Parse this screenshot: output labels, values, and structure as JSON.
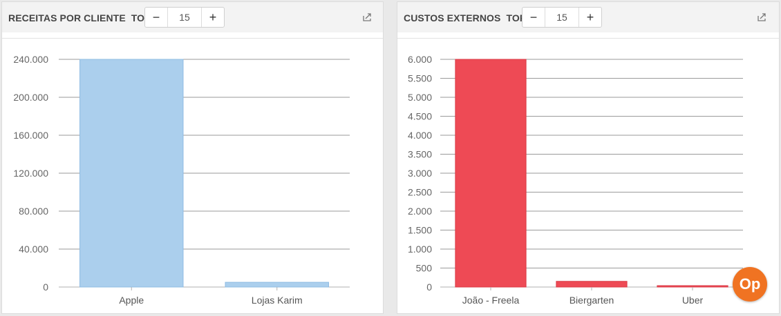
{
  "panels": [
    {
      "title": "RECEITAS POR CLIENTE",
      "top_label": "TOP",
      "top_value": "15",
      "minus": "−",
      "plus": "+"
    },
    {
      "title": "CUSTOS EXTERNOS",
      "top_label": "TOP",
      "top_value": "15",
      "minus": "−",
      "plus": "+"
    }
  ],
  "badge": {
    "label": "Op",
    "color": "#f07322"
  },
  "chart_data": [
    {
      "type": "bar",
      "title": "RECEITAS POR CLIENTE",
      "categories": [
        "Apple",
        "Lojas Karim"
      ],
      "values": [
        240000,
        5000
      ],
      "ylim": [
        0,
        240000
      ],
      "yticks": [
        0,
        40000,
        80000,
        120000,
        160000,
        200000,
        240000
      ],
      "ytick_labels": [
        "0",
        "40.000",
        "80.000",
        "120.000",
        "160.000",
        "200.000",
        "240.000"
      ],
      "grid": true,
      "bar_color": "#abcfed",
      "bar_stroke": "#8fbce3"
    },
    {
      "type": "bar",
      "title": "CUSTOS EXTERNOS",
      "categories": [
        "João - Freela",
        "Biergarten",
        "Uber"
      ],
      "values": [
        6000,
        150,
        30
      ],
      "ylim": [
        0,
        6000
      ],
      "yticks": [
        0,
        500,
        1000,
        1500,
        2000,
        2500,
        3000,
        3500,
        4000,
        4500,
        5000,
        5500,
        6000
      ],
      "ytick_labels": [
        "0",
        "500",
        "1.000",
        "1.500",
        "2.000",
        "2.500",
        "3.000",
        "3.500",
        "4.000",
        "4.500",
        "5.000",
        "5.500",
        "6.000"
      ],
      "grid": true,
      "bar_color": "#ee4a55",
      "bar_stroke": "#d93a45"
    }
  ]
}
